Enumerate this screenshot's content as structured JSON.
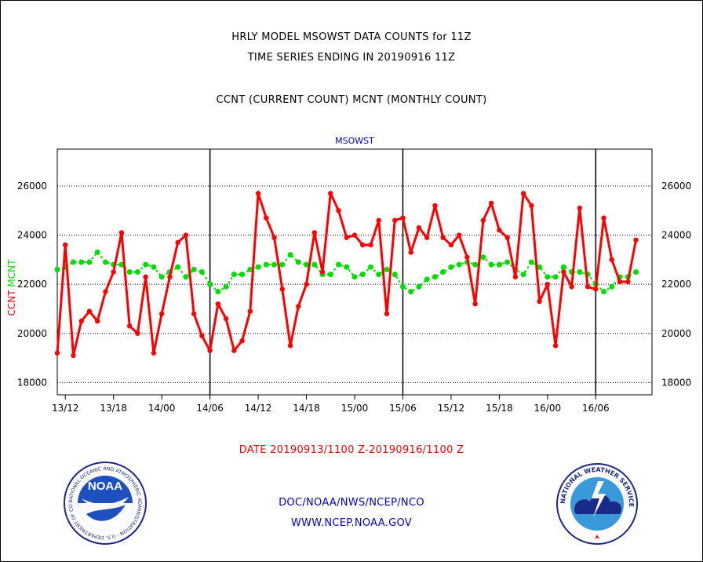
{
  "header": {
    "line1": "HRLY MODEL MSOWST DATA COUNTS for 11Z",
    "line2": "TIME SERIES ENDING IN 20190916 11Z",
    "line3": "CCNT (CURRENT COUNT) MCNT (MONTHLY COUNT)"
  },
  "footer": {
    "date_range": "DATE 20190913/1100 Z-20190916/1100 Z",
    "org": "DOC/NOAA/NWS/NCEP/NCO",
    "site": "WWW.NCEP.NOAA.GOV"
  },
  "logos": {
    "noaa_text": "NOAA",
    "noaa_ring": "NATIONAL OCEANIC AND ATMOSPHERIC ADMINISTRATION · U.S. DEPARTMENT OF COMMERCE ·",
    "nws_ring": "NATIONAL WEATHER SERVICE"
  },
  "colors": {
    "ccnt": "#ff0000",
    "mcnt": "#00dd00",
    "title": "#0000cc",
    "label_red": "#ff0000",
    "footer_blue": "#0000cc"
  },
  "chart_data": {
    "type": "line",
    "title": "MSOWST",
    "ylabel_parts": [
      {
        "text": "CCNT",
        "color": "#ff0000"
      },
      {
        "text": "MCNT",
        "color": "#00dd00"
      }
    ],
    "ylim": [
      17500,
      27500
    ],
    "yticks": [
      18000,
      20000,
      22000,
      24000,
      26000
    ],
    "ytick_labels": [
      "18000",
      "20000",
      "22000",
      "24000",
      "26000"
    ],
    "xlim": [
      0,
      74
    ],
    "xticks": [
      1,
      7,
      13,
      19,
      25,
      31,
      37,
      43,
      49,
      55,
      61,
      67
    ],
    "xtick_labels": [
      "13/12",
      "13/18",
      "14/00",
      "14/06",
      "14/12",
      "14/18",
      "15/00",
      "15/06",
      "15/12",
      "15/18",
      "16/00",
      "16/06"
    ],
    "day_boundaries": [
      19,
      43,
      67
    ],
    "grid": "horizontal-dotted",
    "series": [
      {
        "name": "CCNT",
        "color": "#ff0000",
        "values": [
          19200,
          23600,
          19100,
          20500,
          20900,
          20500,
          21700,
          22500,
          24100,
          20300,
          20000,
          22300,
          19200,
          20800,
          22300,
          23700,
          24000,
          20800,
          19900,
          19300,
          21200,
          20600,
          19300,
          19700,
          20900,
          25700,
          24700,
          23900,
          21800,
          19500,
          21100,
          22000,
          24100,
          22500,
          25700,
          25000,
          23900,
          24000,
          23600,
          23600,
          24600,
          20800,
          24600,
          24700,
          23300,
          24300,
          23900,
          25200,
          23900,
          23600,
          24000,
          23100,
          21200,
          24600,
          25300,
          24200,
          23900,
          22300,
          25700,
          25200,
          21300,
          22000,
          19500,
          22500,
          21900,
          25100,
          21900,
          21800,
          24700,
          23000,
          22100,
          22100,
          23800
        ]
      },
      {
        "name": "MCNT",
        "color": "#00dd00",
        "values": [
          22600,
          22700,
          22900,
          22900,
          22900,
          23300,
          22900,
          22800,
          22800,
          22500,
          22500,
          22800,
          22700,
          22300,
          22500,
          22700,
          22300,
          22600,
          22500,
          22000,
          21700,
          21900,
          22400,
          22400,
          22600,
          22700,
          22800,
          22800,
          22800,
          23200,
          22900,
          22800,
          22800,
          22400,
          22400,
          22800,
          22700,
          22300,
          22400,
          22700,
          22400,
          22600,
          22400,
          21900,
          21700,
          21900,
          22200,
          22300,
          22500,
          22700,
          22800,
          22900,
          22800,
          23100,
          22800,
          22800,
          22900,
          22600,
          22400,
          22900,
          22700,
          22300,
          22300,
          22700,
          22500,
          22500,
          22400,
          22000,
          21700,
          21900,
          22300,
          22300,
          22500
        ]
      }
    ]
  }
}
